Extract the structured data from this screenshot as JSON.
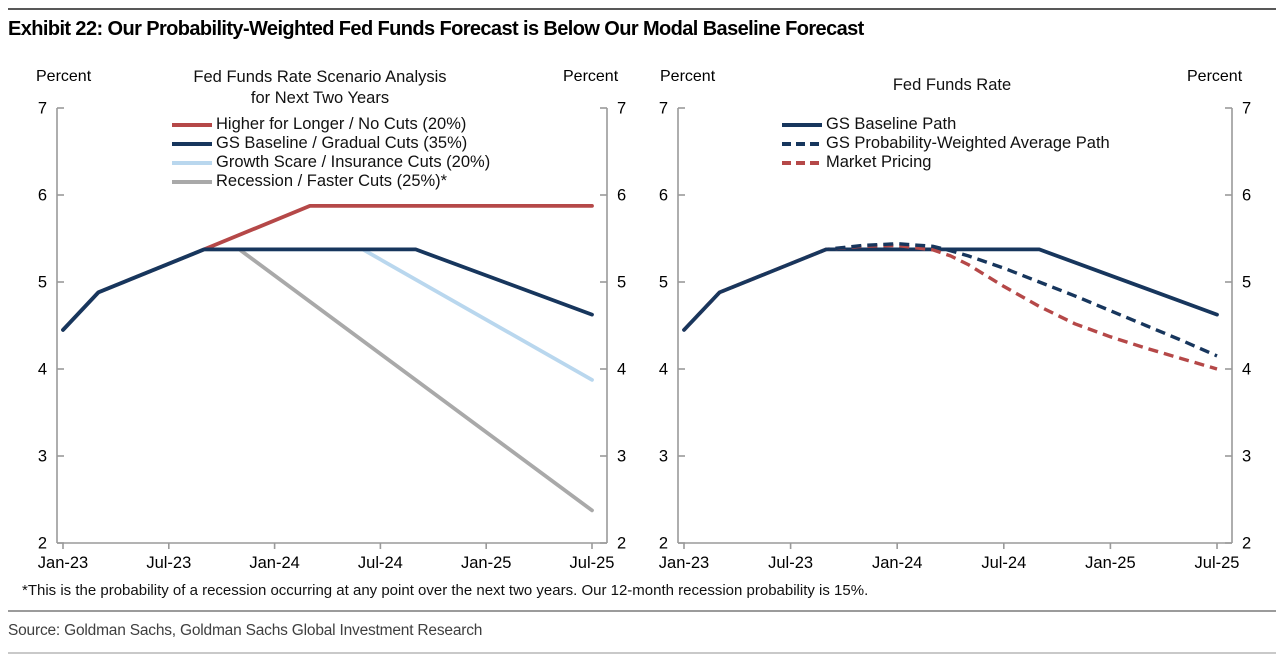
{
  "page": {
    "exhibit_title": "Exhibit 22: Our Probability-Weighted Fed Funds Forecast is Below Our Modal Baseline Forecast",
    "footnote": "*This is the probability of a recession occurring at any point over the next two years. Our 12-month recession probability is 15%.",
    "source": "Source: Goldman Sachs, Goldman Sachs Global Investment Research"
  },
  "labels": {
    "percent": "Percent"
  },
  "colors": {
    "navy": "#17365d",
    "red": "#b54848",
    "light_blue": "#b9d7ee",
    "gray": "#a9a9a9",
    "axis": "#9a9a9a",
    "tick_text": "#000000"
  },
  "chart_data": [
    {
      "type": "line",
      "title_lines": [
        "Fed Funds Rate Scenario Analysis",
        "for Next Two Years"
      ],
      "unit": "Percent",
      "ylim": [
        2,
        7
      ],
      "y_ticks": [
        7,
        6,
        5,
        4,
        3,
        2
      ],
      "x_ticks": [
        "Jan-23",
        "Jul-23",
        "Jan-24",
        "Jul-24",
        "Jan-25",
        "Jul-25"
      ],
      "x_tick_months": [
        0,
        6,
        12,
        18,
        24,
        30
      ],
      "xlim_months": [
        0,
        30
      ],
      "grid": false,
      "legend_position": "top-inside",
      "series": [
        {
          "name": "Higher for Longer / No Cuts (20%)",
          "color": "#b54848",
          "dash": "solid",
          "points": [
            [
              0,
              4.45
            ],
            [
              2,
              4.88
            ],
            [
              8,
              5.375
            ],
            [
              14,
              5.875
            ],
            [
              30,
              5.875
            ]
          ]
        },
        {
          "name": "Growth Scare / Insurance Cuts (20%)",
          "color": "#b9d7ee",
          "dash": "solid",
          "points": [
            [
              0,
              4.45
            ],
            [
              2,
              4.88
            ],
            [
              8,
              5.375
            ],
            [
              17,
              5.375
            ],
            [
              30,
              3.875
            ]
          ]
        },
        {
          "name": "Recession / Faster Cuts (25%)*",
          "color": "#a9a9a9",
          "dash": "solid",
          "points": [
            [
              0,
              4.45
            ],
            [
              2,
              4.88
            ],
            [
              8,
              5.375
            ],
            [
              10,
              5.375
            ],
            [
              30,
              2.375
            ]
          ]
        },
        {
          "name": "GS Baseline / Gradual Cuts (35%)",
          "color": "#17365d",
          "dash": "solid",
          "points": [
            [
              0,
              4.45
            ],
            [
              2,
              4.88
            ],
            [
              8,
              5.375
            ],
            [
              20,
              5.375
            ],
            [
              30,
              4.625
            ]
          ]
        }
      ],
      "legend_order": [
        "Higher for Longer / No Cuts (20%)",
        "GS Baseline / Gradual Cuts (35%)",
        "Growth Scare / Insurance Cuts (20%)",
        "Recession / Faster Cuts (25%)*"
      ]
    },
    {
      "type": "line",
      "title_lines": [
        "Fed Funds Rate"
      ],
      "unit": "Percent",
      "ylim": [
        2,
        7
      ],
      "y_ticks": [
        7,
        6,
        5,
        4,
        3,
        2
      ],
      "x_ticks": [
        "Jan-23",
        "Jul-23",
        "Jan-24",
        "Jul-24",
        "Jan-25",
        "Jul-25"
      ],
      "x_tick_months": [
        0,
        6,
        12,
        18,
        24,
        30
      ],
      "xlim_months": [
        0,
        30
      ],
      "grid": false,
      "legend_position": "top-inside",
      "series": [
        {
          "name": "GS Baseline Path",
          "color": "#17365d",
          "dash": "solid",
          "points": [
            [
              0,
              4.45
            ],
            [
              2,
              4.88
            ],
            [
              8,
              5.375
            ],
            [
              20,
              5.375
            ],
            [
              30,
              4.625
            ]
          ]
        },
        {
          "name": "Market Pricing",
          "color": "#b54848",
          "dash": "dashed",
          "points": [
            [
              0,
              4.45
            ],
            [
              2,
              4.88
            ],
            [
              8,
              5.375
            ],
            [
              10,
              5.41
            ],
            [
              12,
              5.42
            ],
            [
              14,
              5.37
            ],
            [
              15,
              5.3
            ],
            [
              16,
              5.2
            ],
            [
              18,
              4.95
            ],
            [
              20,
              4.72
            ],
            [
              22,
              4.52
            ],
            [
              24,
              4.37
            ],
            [
              26,
              4.24
            ],
            [
              28,
              4.12
            ],
            [
              30,
              4.0
            ]
          ]
        },
        {
          "name": "GS Probability-Weighted Average Path",
          "color": "#17365d",
          "dash": "dashed",
          "points": [
            [
              0,
              4.45
            ],
            [
              2,
              4.88
            ],
            [
              8,
              5.375
            ],
            [
              10,
              5.42
            ],
            [
              12,
              5.44
            ],
            [
              14,
              5.41
            ],
            [
              15,
              5.36
            ],
            [
              16,
              5.3
            ],
            [
              18,
              5.16
            ],
            [
              20,
              5.0
            ],
            [
              22,
              4.84
            ],
            [
              24,
              4.67
            ],
            [
              26,
              4.5
            ],
            [
              28,
              4.33
            ],
            [
              30,
              4.15
            ]
          ]
        }
      ],
      "legend_order": [
        "GS Baseline Path",
        "GS Probability-Weighted Average Path",
        "Market Pricing"
      ]
    }
  ]
}
